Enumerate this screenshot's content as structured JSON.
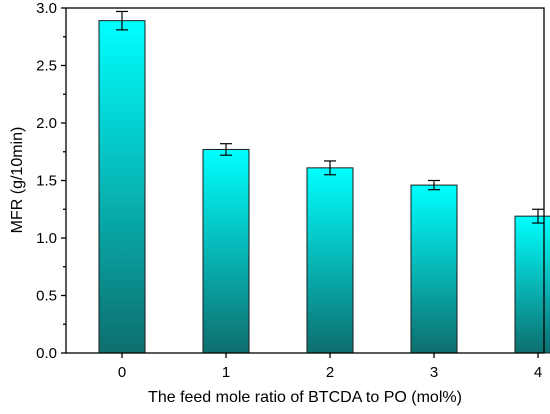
{
  "chart_data": {
    "type": "bar",
    "categories": [
      "0",
      "1",
      "2",
      "3",
      "4"
    ],
    "values": [
      2.89,
      1.77,
      1.61,
      1.46,
      1.19
    ],
    "errors": [
      0.08,
      0.05,
      0.06,
      0.04,
      0.06
    ],
    "xlabel": "The feed mole ratio of BTCDA to PO (mol%)",
    "ylabel": "MFR (g/10min)",
    "ylim": [
      0.0,
      3.0
    ],
    "yticks": [
      "0.0",
      "0.5",
      "1.0",
      "1.5",
      "2.0",
      "2.5",
      "3.0"
    ],
    "bar_gradient": {
      "top": "#00ffff",
      "bottom": "#0e6e6e"
    },
    "grid": false,
    "legend": "none"
  }
}
